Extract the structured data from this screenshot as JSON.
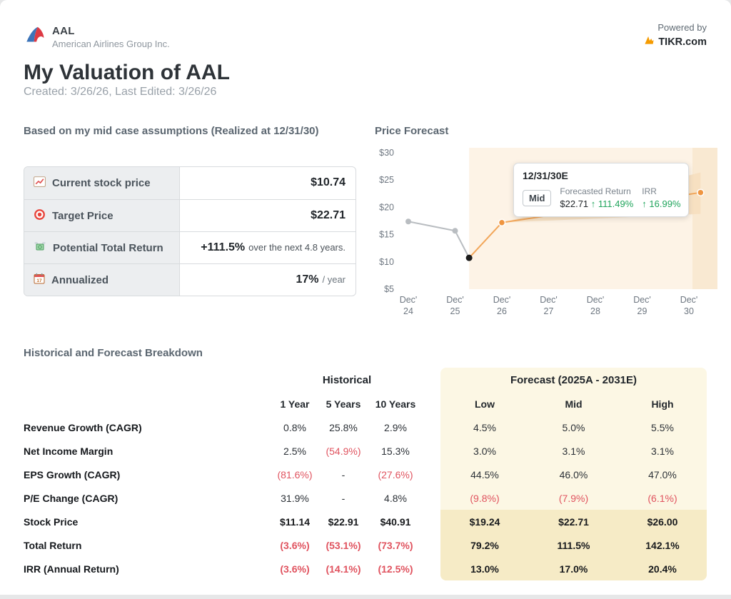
{
  "header": {
    "ticker": "AAL",
    "company": "American Airlines Group Inc.",
    "powered_by": "Powered by",
    "brand": "TIKR.com"
  },
  "page": {
    "title": "My Valuation of AAL",
    "subtitle": "Created: 3/26/26, Last Edited: 3/26/26"
  },
  "assumptions": {
    "heading": "Based on my mid case assumptions (Realized at 12/31/30)",
    "rows": [
      {
        "label": "Current stock price",
        "value": "$10.74",
        "suffix": ""
      },
      {
        "label": "Target Price",
        "value": "$22.71",
        "suffix": ""
      },
      {
        "label": "Potential Total Return",
        "value": "+111.5%",
        "suffix": "over the next 4.8 years."
      },
      {
        "label": "Annualized",
        "value": "17%",
        "suffix": "/ year"
      }
    ]
  },
  "price_forecast": {
    "heading": "Price Forecast",
    "tooltip": {
      "title": "12/31/30E",
      "scenario": "Mid",
      "return_label": "Forecasted Return",
      "return_value": "$22.71",
      "return_change": "↑ 111.49%",
      "irr_label": "IRR",
      "irr_change": "↑ 16.99%"
    }
  },
  "chart_data": {
    "type": "line",
    "title": "Price Forecast",
    "ylim": [
      5,
      30
    ],
    "y_ticks": [
      30,
      25,
      20,
      15,
      10,
      5
    ],
    "y_tick_labels": [
      "$30",
      "$25",
      "$20",
      "$15",
      "$10",
      "$5"
    ],
    "x_tick_labels": [
      "Dec' 24",
      "Dec' 25",
      "Dec' 26",
      "Dec' 27",
      "Dec' 28",
      "Dec' 29",
      "Dec' 30"
    ],
    "series": [
      {
        "name": "historical",
        "color": "#b9bdc1",
        "points": [
          [
            0,
            17.4
          ],
          [
            1.0,
            15.7
          ],
          [
            1.3,
            10.74
          ]
        ]
      },
      {
        "name": "forecast-mid",
        "color": "#f2a65a",
        "points": [
          [
            1.3,
            10.74
          ],
          [
            2.0,
            17.2
          ],
          [
            6.25,
            22.71
          ]
        ]
      }
    ],
    "band": {
      "start": [
        2.0,
        17.2
      ],
      "end_upper": [
        6.25,
        26.4
      ],
      "end_lower": [
        6.25,
        18.8
      ],
      "color": "#f6ddbd"
    },
    "forecast_region_start_x": 1.3,
    "forecast_region_color": "#fdf3e6",
    "markers": {
      "historical_color": "#b9bdc1",
      "current_color": "#1b1b1b",
      "forecast_color": "#ef9540"
    }
  },
  "breakdown": {
    "heading": "Historical and Forecast Breakdown",
    "historical_header": "Historical",
    "forecast_header": "Forecast (2025A - 2031E)",
    "historical_cols": [
      "1 Year",
      "5 Years",
      "10 Years"
    ],
    "forecast_cols": [
      "Low",
      "Mid",
      "High"
    ],
    "rows": [
      {
        "label": "Revenue Growth (CAGR)",
        "historical": [
          "0.8%",
          "25.8%",
          "2.9%"
        ],
        "forecast": [
          "4.5%",
          "5.0%",
          "5.5%"
        ],
        "bold": false,
        "highlight": false
      },
      {
        "label": "Net Income Margin",
        "historical": [
          "2.5%",
          "(54.9%)",
          "15.3%"
        ],
        "forecast": [
          "3.0%",
          "3.1%",
          "3.1%"
        ],
        "bold": false,
        "highlight": false
      },
      {
        "label": "EPS Growth (CAGR)",
        "historical": [
          "(81.6%)",
          "-",
          "(27.6%)"
        ],
        "forecast": [
          "44.5%",
          "46.0%",
          "47.0%"
        ],
        "bold": false,
        "highlight": false
      },
      {
        "label": "P/E Change (CAGR)",
        "historical": [
          "31.9%",
          "-",
          "4.8%"
        ],
        "forecast": [
          "(9.8%)",
          "(7.9%)",
          "(6.1%)"
        ],
        "bold": false,
        "highlight": false
      },
      {
        "label": "Stock Price",
        "historical": [
          "$11.14",
          "$22.91",
          "$40.91"
        ],
        "forecast": [
          "$19.24",
          "$22.71",
          "$26.00"
        ],
        "bold": true,
        "highlight": true
      },
      {
        "label": "Total Return",
        "historical": [
          "(3.6%)",
          "(53.1%)",
          "(73.7%)"
        ],
        "forecast": [
          "79.2%",
          "111.5%",
          "142.1%"
        ],
        "bold": true,
        "highlight": true
      },
      {
        "label": "IRR (Annual Return)",
        "historical": [
          "(3.6%)",
          "(14.1%)",
          "(12.5%)"
        ],
        "forecast": [
          "13.0%",
          "17.0%",
          "20.4%"
        ],
        "bold": true,
        "highlight": true
      }
    ]
  }
}
